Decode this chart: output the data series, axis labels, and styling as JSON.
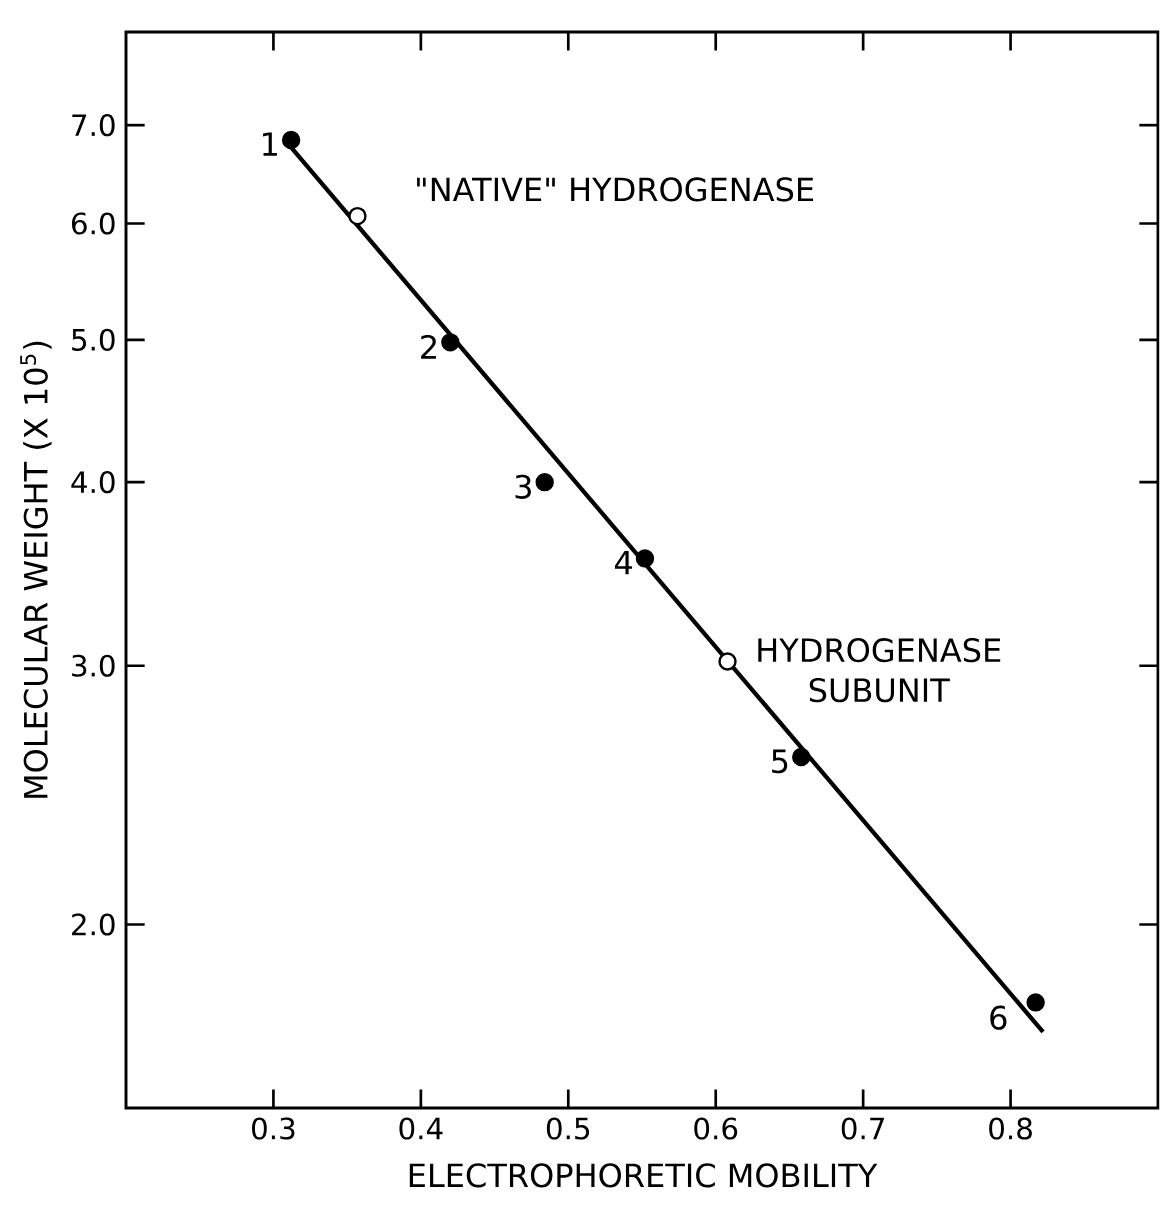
{
  "chart_data": {
    "type": "scatter",
    "xlabel": "ELECTROPHORETIC MOBILITY",
    "ylabel": "MOLECULAR WEIGHT (X 10$^{5}$)",
    "log": "y",
    "xlim": [
      0.2,
      0.9
    ],
    "ylim": [
      1.5,
      8.1
    ],
    "xticks": [
      0.3,
      0.4,
      0.5,
      0.6,
      0.7,
      0.8
    ],
    "yticks": [
      {
        "value": 2,
        "label": "2.0"
      },
      {
        "value": 3,
        "label": "3.0"
      },
      {
        "value": 4,
        "label": "4.0"
      },
      {
        "value": 5,
        "label": "5.0"
      },
      {
        "value": 6,
        "label": "6.0"
      },
      {
        "value": 7,
        "label": "7.0"
      }
    ],
    "series": [
      {
        "marker": "circle",
        "color": "#000000",
        "x": [
          0.312,
          0.42,
          0.484,
          0.552,
          0.658,
          0.817
        ],
        "values": [
          6.84,
          4.98,
          4.0,
          3.55,
          2.6,
          1.77
        ]
      },
      {
        "marker": "circle",
        "color": "#ffffff",
        "x": [
          0.357,
          0.608
        ],
        "values": [
          6.07,
          3.02
        ]
      },
      {
        "type": "line",
        "marker": "none",
        "color": "#000000",
        "x": [
          0.312,
          0.822
        ],
        "values": [
          6.76,
          1.69
        ]
      }
    ],
    "annotations": [
      {
        "text": "1",
        "x": 0.312,
        "y": 6.84
      },
      {
        "text": "2",
        "x": 0.42,
        "y": 4.98
      },
      {
        "text": "3",
        "x": 0.484,
        "y": 4.0
      },
      {
        "text": "4",
        "x": 0.552,
        "y": 3.55
      },
      {
        "text": "5",
        "x": 0.658,
        "y": 2.6
      },
      {
        "text": "6",
        "x": 0.817,
        "y": 1.77
      },
      {
        "text": "\"NATIVE\" HYDROGENASE",
        "x": 0.357,
        "y": 6.07
      },
      {
        "text": "HYDROGENASE SUBUNIT",
        "x": 0.608,
        "y": 3.02
      }
    ]
  }
}
